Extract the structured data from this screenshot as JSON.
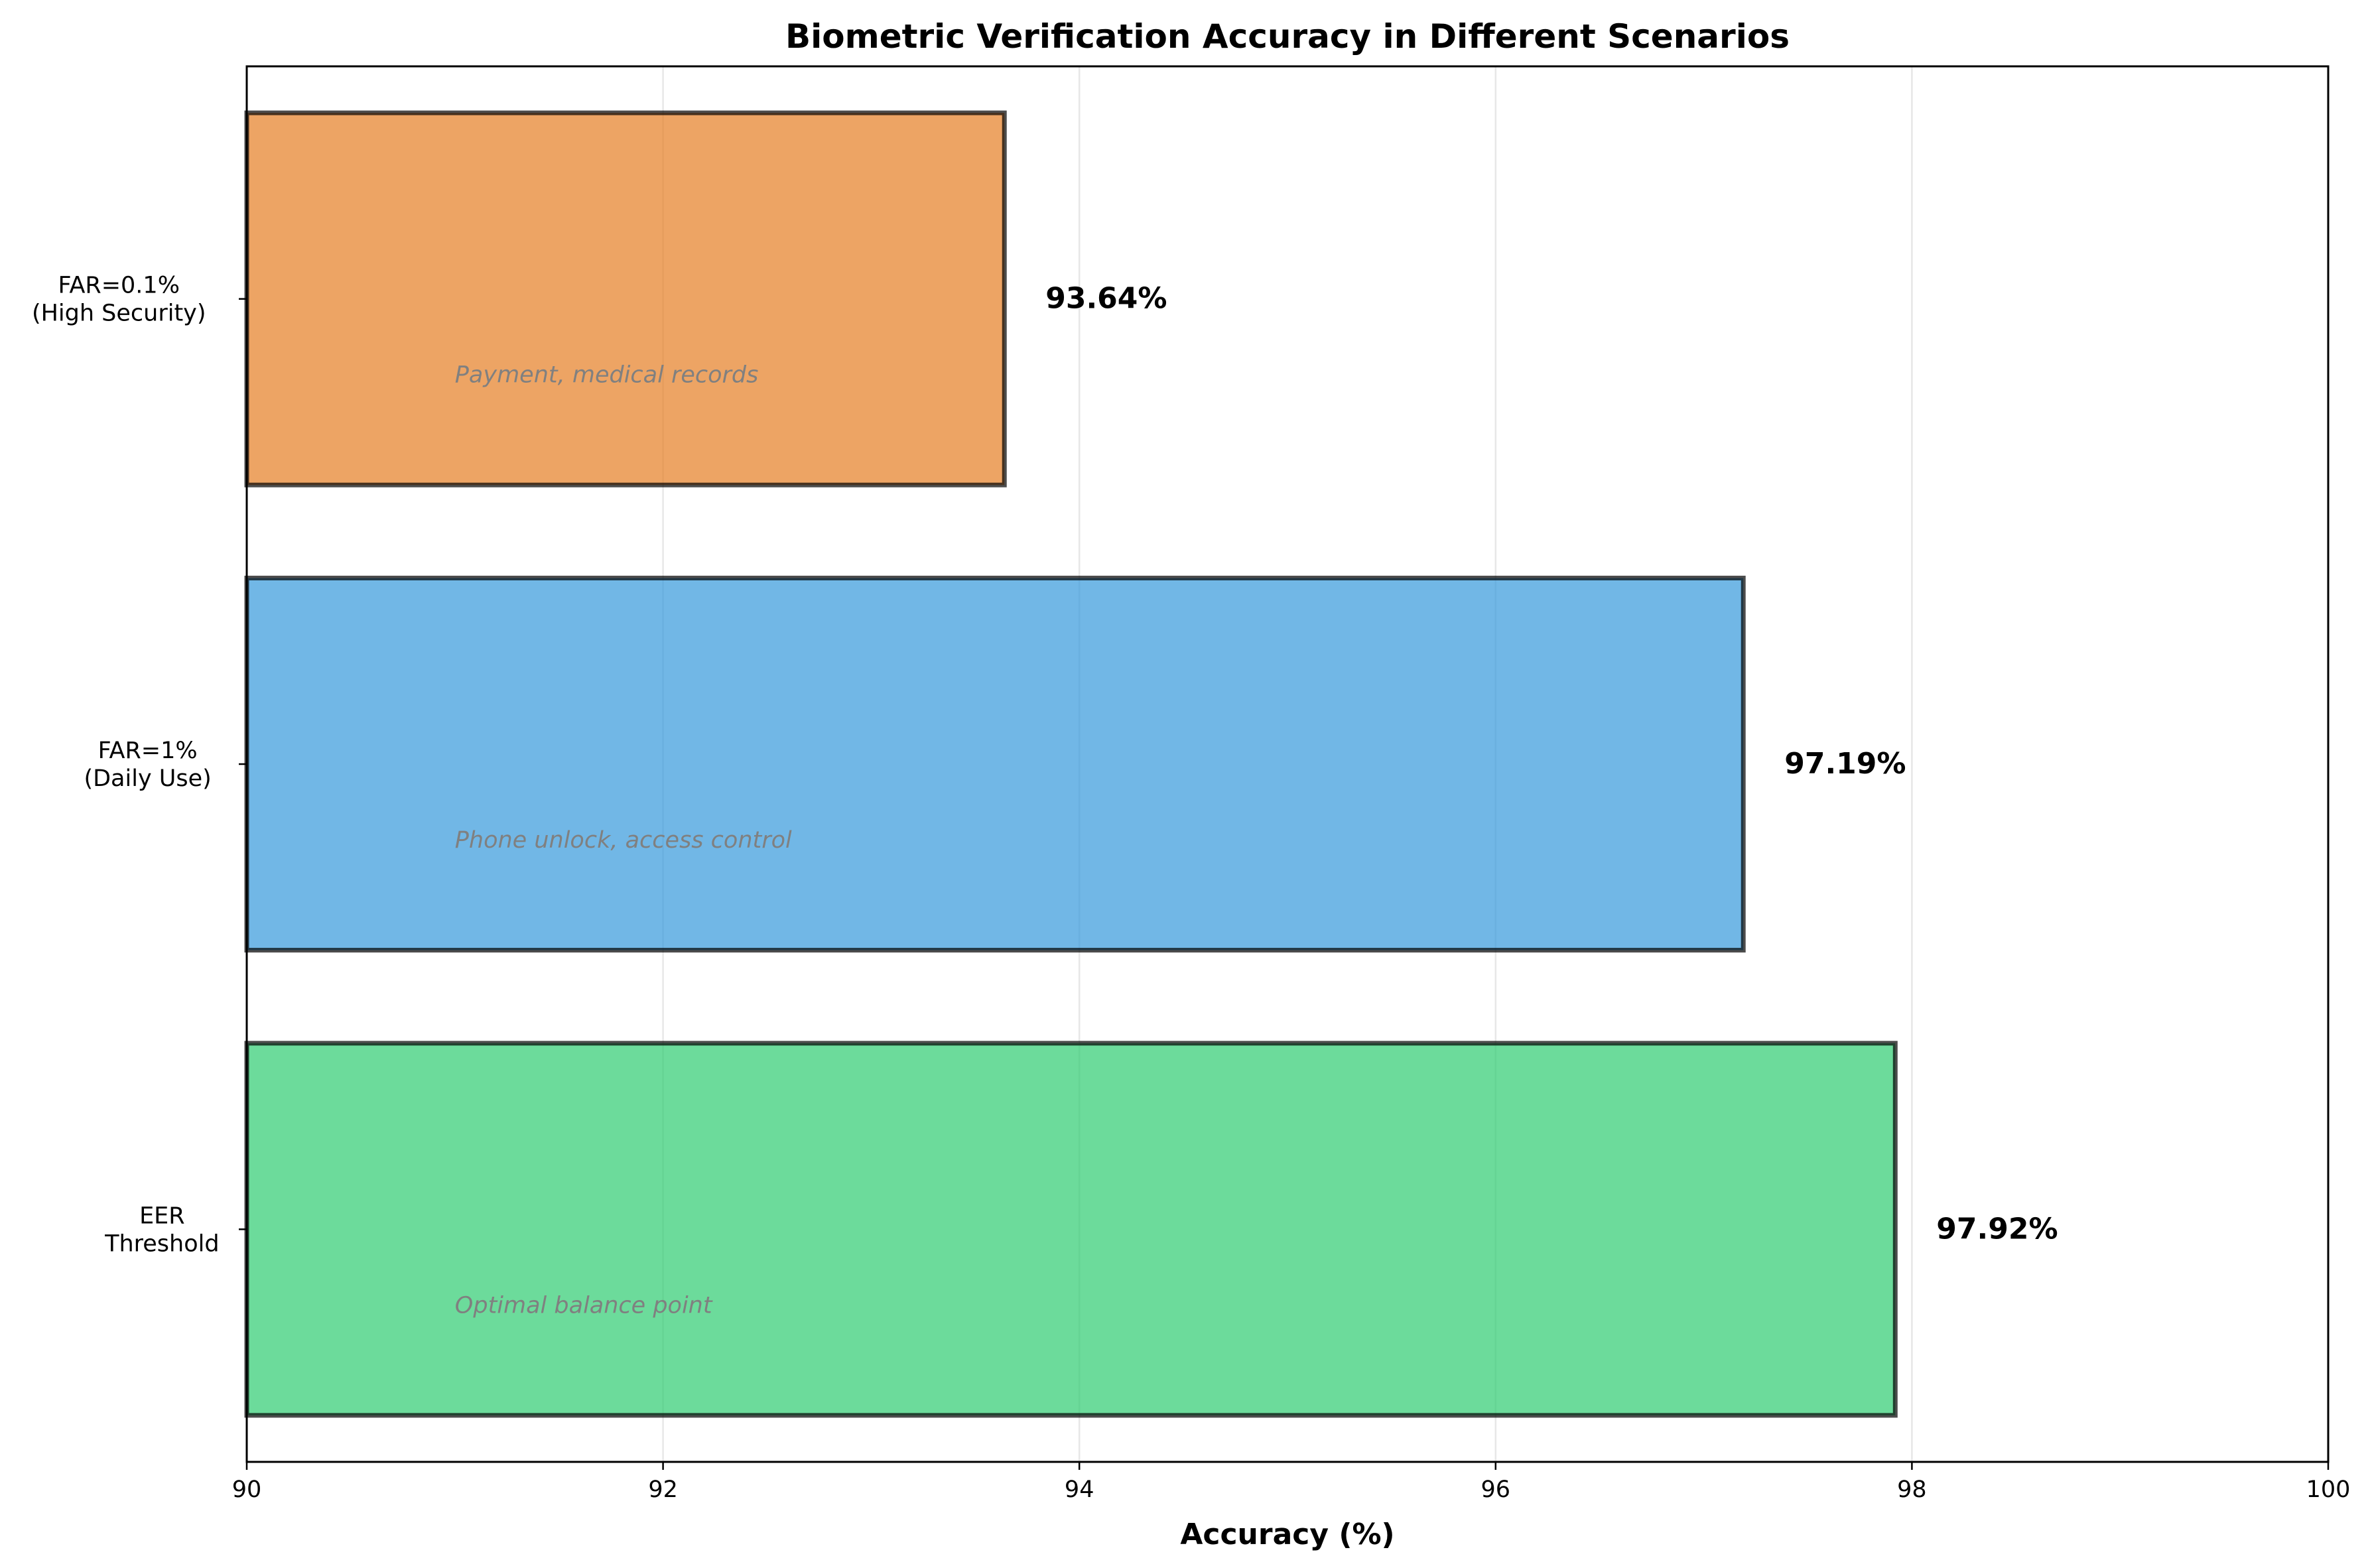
{
  "chart_data": {
    "type": "bar",
    "orientation": "horizontal",
    "title": "Biometric Verification Accuracy in Different Scenarios",
    "xlabel": "Accuracy (%)",
    "ylabel": "",
    "xlim": [
      90,
      100
    ],
    "xticks": [
      "90",
      "92",
      "94",
      "96",
      "98",
      "100"
    ],
    "grid": "vertical",
    "legend": "none",
    "categories": [
      {
        "lines": [
          "FAR=0.1%",
          "(High Security)"
        ],
        "value": 93.64,
        "value_label": "93.64%",
        "note": "Payment, medical records",
        "color": "#e67e22"
      },
      {
        "lines": [
          "FAR=1%",
          "(Daily Use)"
        ],
        "value": 97.19,
        "value_label": "97.19%",
        "note": "Phone unlock, access control",
        "color": "#3498db"
      },
      {
        "lines": [
          "EER",
          "Threshold"
        ],
        "value": 97.92,
        "value_label": "97.92%",
        "note": "Optimal balance point",
        "color": "#2ecc71"
      }
    ]
  }
}
